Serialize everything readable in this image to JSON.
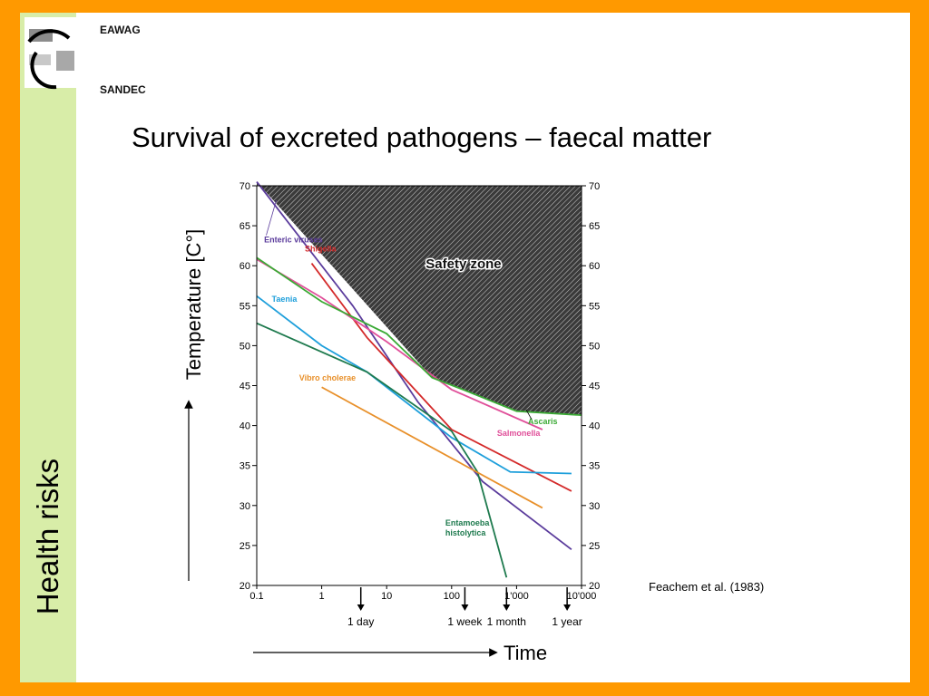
{
  "header": {
    "org_top": "EAWAG",
    "org_bottom": "SANDEC"
  },
  "sidebar": {
    "label": "Health risks"
  },
  "page": {
    "title": "Survival of excreted pathogens – faecal matter",
    "citation": "Feachem et al. (1983)"
  },
  "colors": {
    "frame": "#FF9900",
    "sidebar": "#D8EDA8",
    "enteric_viruses": "#5B3C9C",
    "shigella": "#D42A2A",
    "salmonella": "#E0509A",
    "taenia": "#1E9FDB",
    "ascaris": "#3BAA35",
    "entamoeba": "#1E7A4E",
    "vibrio": "#E8902A"
  },
  "chart_data": {
    "type": "line",
    "xscale": "log",
    "xlim": [
      0.1,
      10000
    ],
    "ylim": [
      20,
      70
    ],
    "xticks": [
      0.1,
      1,
      10,
      100,
      1000,
      10000
    ],
    "xtick_labels": [
      "0.1",
      "1",
      "10",
      "100",
      "1'000",
      "10'000"
    ],
    "yticks": [
      20,
      25,
      30,
      35,
      40,
      45,
      50,
      55,
      60,
      65,
      70
    ],
    "yticks_right": [
      20,
      25,
      30,
      35,
      40,
      45,
      50,
      55,
      60,
      65,
      70
    ],
    "xlabel": "Time",
    "ylabel": "Temperature [C°]",
    "time_markers": [
      {
        "label": "1 day",
        "x": 4
      },
      {
        "label": "1 week",
        "x": 160
      },
      {
        "label": "1 month",
        "x": 700
      },
      {
        "label": "1 year",
        "x": 6000
      }
    ],
    "safety_zone_label": "Safety zone",
    "safety_zone_boundary": [
      [
        0.1,
        70.5
      ],
      [
        50,
        46
      ],
      [
        150,
        44.5
      ],
      [
        1000,
        41.8
      ],
      [
        10000,
        41.3
      ]
    ],
    "series": [
      {
        "name": "Enteric viruses",
        "color": "#5B3C9C",
        "label_x": 0.13,
        "label_y": 62.9,
        "points": [
          [
            0.1,
            70.5
          ],
          [
            3,
            55
          ],
          [
            30,
            43
          ],
          [
            300,
            33
          ],
          [
            7000,
            24.5
          ]
        ]
      },
      {
        "name": "Shigella",
        "color": "#D42A2A",
        "label_x": 0.55,
        "label_y": 61.8,
        "points": [
          [
            0.7,
            60.3
          ],
          [
            5,
            51
          ],
          [
            100,
            39.5
          ],
          [
            7000,
            31.8
          ]
        ]
      },
      {
        "name": "Salmonella",
        "color": "#E0509A",
        "label_x": 500,
        "label_y": 38.7,
        "points": [
          [
            0.1,
            60.8
          ],
          [
            1,
            56
          ],
          [
            10,
            50.5
          ],
          [
            100,
            44.5
          ],
          [
            2500,
            39.5
          ]
        ]
      },
      {
        "name": "Taenia",
        "color": "#1E9FDB",
        "label_x": 0.17,
        "label_y": 55.5,
        "points": [
          [
            0.1,
            56.2
          ],
          [
            1,
            50
          ],
          [
            5,
            46.7
          ],
          [
            100,
            38.5
          ],
          [
            800,
            34.2
          ],
          [
            7000,
            34
          ]
        ]
      },
      {
        "name": "Ascaris",
        "color": "#3BAA35",
        "label_x": 1500,
        "label_y": 40.2,
        "points": [
          [
            0.1,
            61
          ],
          [
            1,
            55.5
          ],
          [
            10,
            51.5
          ],
          [
            50,
            46
          ],
          [
            150,
            44.5
          ],
          [
            1000,
            41.8
          ],
          [
            10000,
            41.3
          ]
        ]
      },
      {
        "name": "Entamoeba\nhistolytica",
        "color": "#1E7A4E",
        "label_x": 80,
        "label_y": 27.5,
        "points": [
          [
            0.1,
            52.8
          ],
          [
            5,
            46.7
          ],
          [
            100,
            39.3
          ],
          [
            250,
            34.2
          ],
          [
            700,
            21
          ]
        ]
      },
      {
        "name": "Vibro cholerae",
        "color": "#E8902A",
        "label_x": 0.45,
        "label_y": 45.6,
        "points": [
          [
            1,
            44.8
          ],
          [
            2500,
            29.7
          ]
        ]
      }
    ]
  }
}
